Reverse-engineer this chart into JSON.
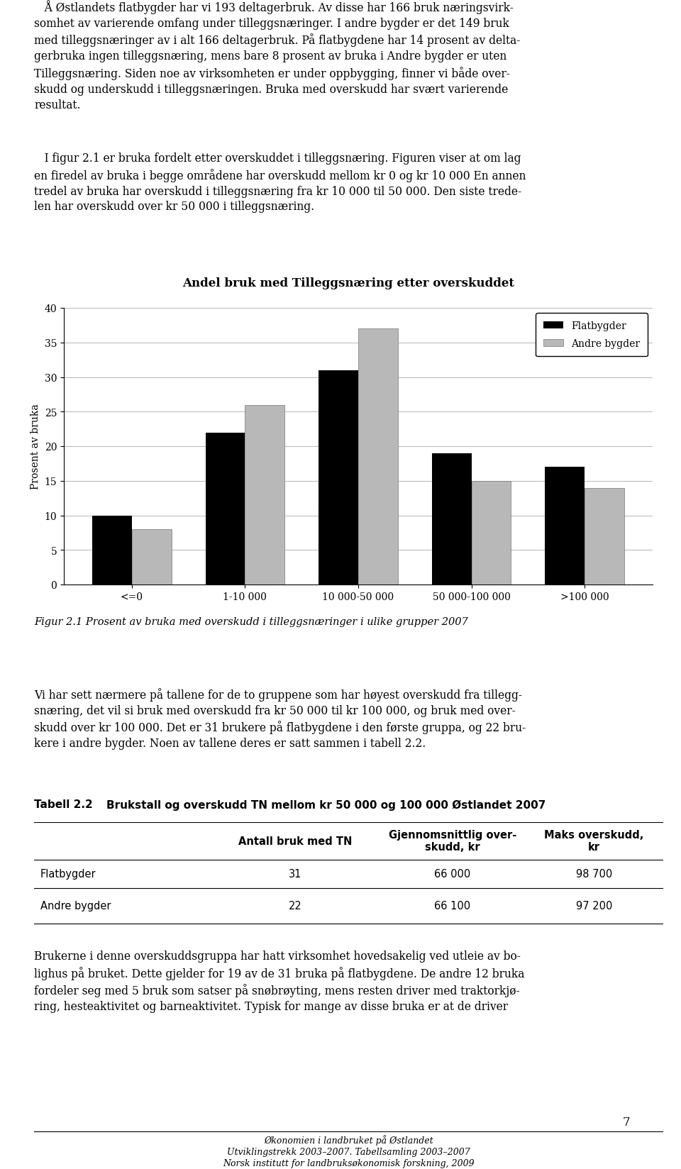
{
  "title": "Andel bruk med Tilleggsnæring etter overskuddet",
  "categories": [
    "<=0",
    "1-10 000",
    "10 000-50 000",
    "50 000-100 000",
    ">100 000"
  ],
  "flatbygder": [
    10,
    22,
    31,
    19,
    17
  ],
  "andre_bygder": [
    8,
    26,
    37,
    15,
    14
  ],
  "ylabel": "Prosent av bruka",
  "ylim": [
    0,
    40
  ],
  "yticks": [
    0,
    5,
    10,
    15,
    20,
    25,
    30,
    35,
    40
  ],
  "legend_flatbygder": "Flatbygder",
  "legend_andre_bygder": "Andre bygder",
  "bar_color_flat": "#000000",
  "bar_color_andre": "#b8b8b8",
  "para1_line1": "   Å Østlandets flatbygder har vi 193 deltagerbruk. Av disse har 166 bruk næringsvirk-",
  "para1_line2": "somhet av varierende omfang under tilleggsnæringer. I andre bygder er det 149 bruk",
  "para1_line3": "med tilleggsnæringer av i alt 166 deltagerbruk. På flatbygdene har 14 prosent av delta-",
  "para1_line4": "gerbruka ingen tilleggsnæring, mens bare 8 prosent av bruka i Andre bygder er uten",
  "para1_line5": "Tilleggsnæring. Siden noe av virksomheten er under oppbygging, finner vi både over-",
  "para1_line6": "skudd og underskudd i tilleggsnæringen. Bruka med overskudd har svært varierende",
  "para1_line7": "resultat.",
  "para2_line1": "   I figur 2.1 er bruka fordelt etter overskuddet i tilleggsnæring. Figuren viser at om lag",
  "para2_line2": "en firedel av bruka i begge områdene har overskudd mellom kr 0 og kr 10 000 En annen",
  "para2_line3": "tredel av bruka har overskudd i tilleggsnæring fra kr 10 000 til 50 000. Den siste trede-",
  "para2_line4": "len har overskudd over kr 50 000 i tilleggsnæring.",
  "fig_caption": "Figur 2.1 Prosent av bruka med overskudd i tilleggsnæringer i ulike grupper 2007",
  "para3_line1": "Vi har sett nærmere på tallene for de to gruppene som har høyest overskudd fra tillegg-",
  "para3_line2": "snæring, det vil si bruk med overskudd fra kr 50 000 til kr 100 000, og bruk med over-",
  "para3_line3": "skudd over kr 100 000. Det er 31 brukere på flatbygdene i den første gruppa, og 22 bru-",
  "para3_line4": "kere i andre bygder. Noen av tallene deres er satt sammen i tabell 2.2.",
  "table_heading": "Tabell 2.2",
  "table_title": "Brukstall og overskudd TN mellom kr 50 000 og 100 000 Østlandet 2007",
  "table_col0": "",
  "table_col1": "Antall bruk med TN",
  "table_col2a": "Gjennomsnittlig over-",
  "table_col2b": "skudd, kr",
  "table_col3a": "Maks overskudd,",
  "table_col3b": "kr",
  "table_row1_label": "Flatbygder",
  "table_row2_label": "Andre bygder",
  "table_r1c1": "31",
  "table_r1c2": "66 000",
  "table_r1c3": "98 700",
  "table_r2c1": "22",
  "table_r2c2": "66 100",
  "table_r2c3": "97 200",
  "para4_line1": "Brukerne i denne overskuddsgruppa har hatt virksomhet hovedsakelig ved utleie av bo-",
  "para4_line2": "lighus på bruket. Dette gjelder for 19 av de 31 bruka på flatbygdene. De andre 12 bruka",
  "para4_line3": "fordeler seg med 5 bruk som satser på snøbrøyting, mens resten driver med traktorkjø-",
  "para4_line4": "ring, hesteaktivitet og barneaktivitet. Typisk for mange av disse bruka er at de driver",
  "footer1": "Økonomien i landbruket på Østlandet",
  "footer2": "Utviklingstrekk 2003–2007. Tabellsamling 2003–2007",
  "footer3": "Norsk institutt for landbruksøkonomisk forskning, 2009",
  "page_num": "7"
}
